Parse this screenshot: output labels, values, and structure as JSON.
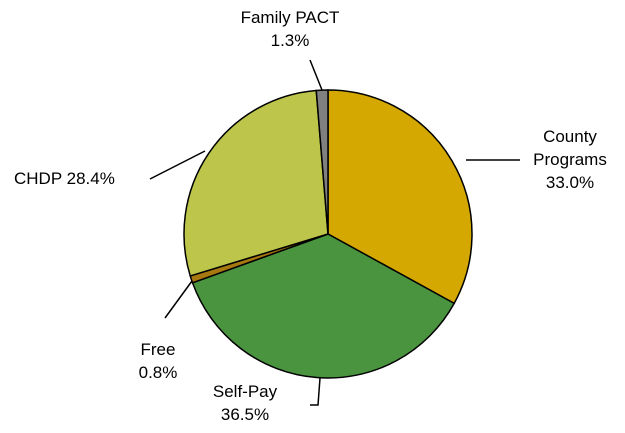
{
  "chart_data": {
    "type": "pie",
    "categories": [
      "County Programs",
      "Self-Pay",
      "Free",
      "CHDP",
      "Family PACT"
    ],
    "values": [
      33.0,
      36.5,
      0.8,
      28.4,
      1.3
    ],
    "value_labels": [
      "33.0%",
      "36.5%",
      "0.8%",
      "28.4%",
      "1.3%"
    ],
    "colors": [
      "#d4a800",
      "#4a9440",
      "#a87810",
      "#bdc64a",
      "#808080"
    ]
  }
}
